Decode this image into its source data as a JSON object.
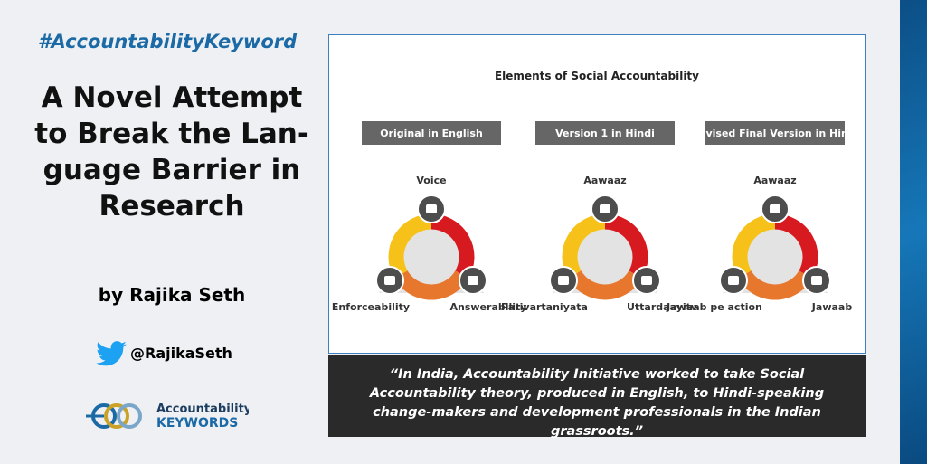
{
  "header": {
    "hashtag": "#AccountabilityKeyword",
    "title_lines": [
      "A Novel Attempt",
      "to Break the Lan-",
      "guage Barrier in",
      "Research"
    ],
    "author": "by  Rajika Seth",
    "twitter": "@RajikaSeth",
    "logo": {
      "line1": "Accountability",
      "line2": "KEYWORDS"
    }
  },
  "figure": {
    "title": "Elements of Social Accountability",
    "panels": [
      {
        "heading": "Original in English",
        "top": "Voice",
        "left": "Enforceability",
        "right": "Answerability"
      },
      {
        "heading": "Version 1 in Hindi",
        "top": "Aawaaz",
        "left": "Parivartaniyata",
        "right": "Uttardaayitv"
      },
      {
        "heading": "Revised Final Version in Hindi",
        "top": "Aawaaz",
        "left": "Jawaab pe action",
        "right": "Jawaab"
      }
    ]
  },
  "quote": "“In India, Accountability Initiative worked to take Social Accountability theory, produced in English, to Hindi-speaking change-makers and development professionals in the Indian grassroots.”"
}
